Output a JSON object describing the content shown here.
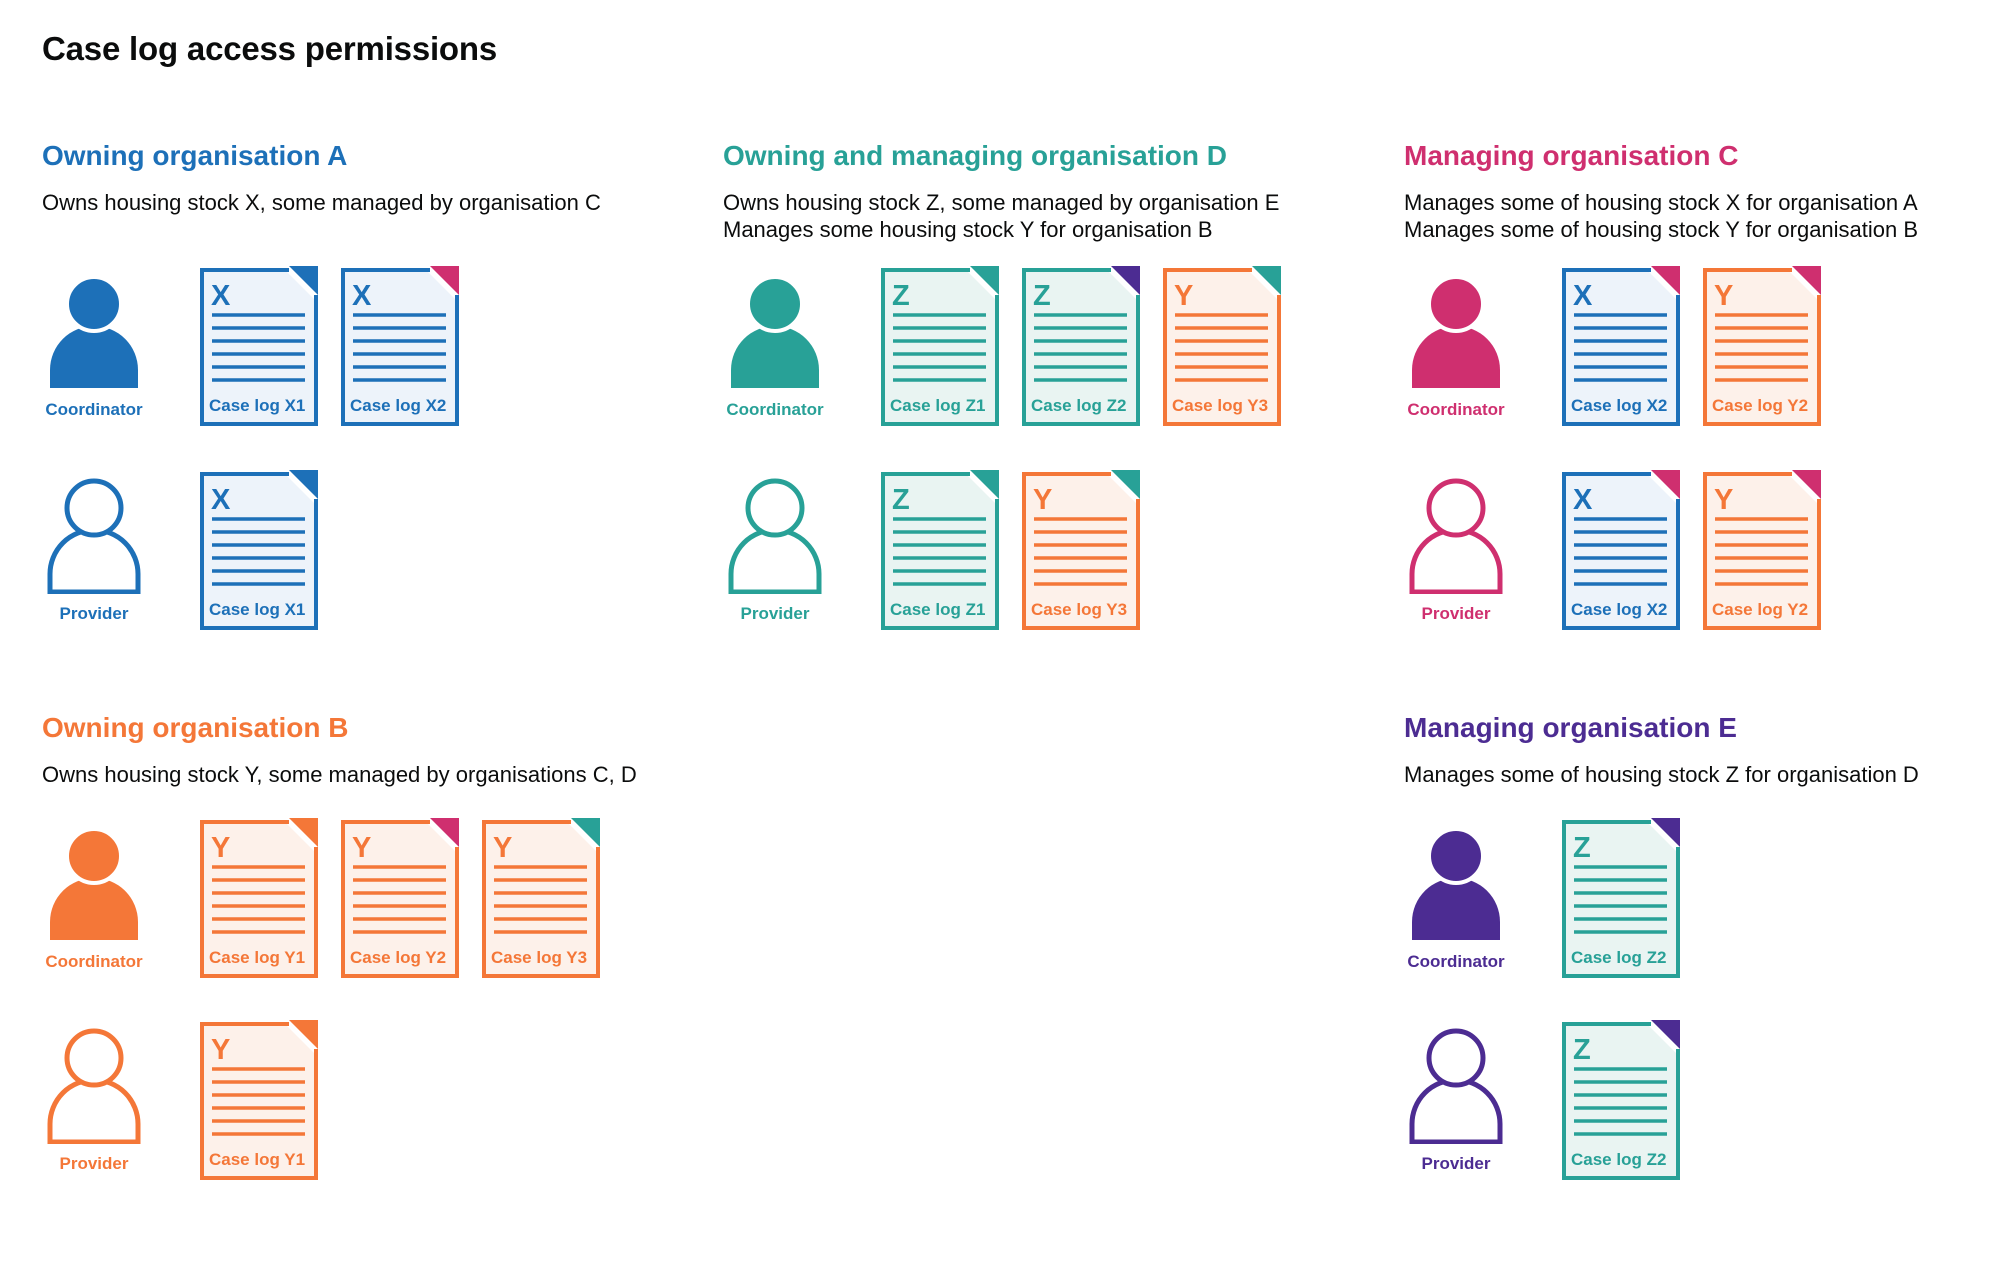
{
  "title": "Case log access permissions",
  "colors": {
    "blue": "#1d70b8",
    "blue_tint": "#edf3fa",
    "teal": "#28a197",
    "teal_tint": "#e9f4f2",
    "pink": "#cf2f6f",
    "orange": "#f47738",
    "orange_tint": "#fdf1ea",
    "purple": "#4c2c92",
    "text": "#0b0c0c"
  },
  "sections": [
    {
      "id": "org-a",
      "color_key": "blue",
      "heading": "Owning organisation A",
      "description_lines": [
        "Owns housing stock X, some managed by organisation C"
      ],
      "rows": [
        {
          "role": "Coordinator",
          "person_style": "filled",
          "docs": [
            {
              "letter": "X",
              "label": "Case log X1",
              "color": "blue",
              "fold": "blue"
            },
            {
              "letter": "X",
              "label": "Case log X2",
              "color": "blue",
              "fold": "pink"
            }
          ]
        },
        {
          "role": "Provider",
          "person_style": "outline",
          "docs": [
            {
              "letter": "X",
              "label": "Case log X1",
              "color": "blue",
              "fold": "blue"
            }
          ]
        }
      ]
    },
    {
      "id": "org-d",
      "color_key": "teal",
      "heading": "Owning and managing organisation D",
      "description_lines": [
        "Owns housing stock Z, some managed by organisation E",
        "Manages some housing stock Y for organisation B"
      ],
      "rows": [
        {
          "role": "Coordinator",
          "person_style": "filled",
          "docs": [
            {
              "letter": "Z",
              "label": "Case log Z1",
              "color": "teal",
              "fold": "teal"
            },
            {
              "letter": "Z",
              "label": "Case log Z2",
              "color": "teal",
              "fold": "purple"
            },
            {
              "letter": "Y",
              "label": "Case log Y3",
              "color": "orange",
              "fold": "teal"
            }
          ]
        },
        {
          "role": "Provider",
          "person_style": "outline",
          "docs": [
            {
              "letter": "Z",
              "label": "Case log Z1",
              "color": "teal",
              "fold": "teal"
            },
            {
              "letter": "Y",
              "label": "Case log Y3",
              "color": "orange",
              "fold": "teal"
            }
          ]
        }
      ]
    },
    {
      "id": "org-c",
      "color_key": "pink",
      "heading": "Managing organisation C",
      "description_lines": [
        "Manages some of housing stock X for organisation A",
        "Manages some of housing stock Y for organisation B"
      ],
      "rows": [
        {
          "role": "Coordinator",
          "person_style": "filled",
          "docs": [
            {
              "letter": "X",
              "label": "Case log X2",
              "color": "blue",
              "fold": "pink"
            },
            {
              "letter": "Y",
              "label": "Case log Y2",
              "color": "orange",
              "fold": "pink"
            }
          ]
        },
        {
          "role": "Provider",
          "person_style": "outline",
          "docs": [
            {
              "letter": "X",
              "label": "Case log X2",
              "color": "blue",
              "fold": "pink"
            },
            {
              "letter": "Y",
              "label": "Case log Y2",
              "color": "orange",
              "fold": "pink"
            }
          ]
        }
      ]
    },
    {
      "id": "org-b",
      "color_key": "orange",
      "heading": "Owning organisation B",
      "description_lines": [
        "Owns housing stock Y, some managed by organisations C, D"
      ],
      "rows": [
        {
          "role": "Coordinator",
          "person_style": "filled",
          "docs": [
            {
              "letter": "Y",
              "label": "Case log Y1",
              "color": "orange",
              "fold": "orange"
            },
            {
              "letter": "Y",
              "label": "Case log Y2",
              "color": "orange",
              "fold": "pink"
            },
            {
              "letter": "Y",
              "label": "Case log Y3",
              "color": "orange",
              "fold": "teal"
            }
          ]
        },
        {
          "role": "Provider",
          "person_style": "outline",
          "docs": [
            {
              "letter": "Y",
              "label": "Case log Y1",
              "color": "orange",
              "fold": "orange"
            }
          ]
        }
      ]
    },
    {
      "id": "org-e",
      "color_key": "purple",
      "heading": "Managing organisation E",
      "description_lines": [
        "Manages some of housing stock Z for organisation D"
      ],
      "rows": [
        {
          "role": "Coordinator",
          "person_style": "filled",
          "docs": [
            {
              "letter": "Z",
              "label": "Case log Z2",
              "color": "teal",
              "fold": "purple"
            }
          ]
        },
        {
          "role": "Provider",
          "person_style": "outline",
          "docs": [
            {
              "letter": "Z",
              "label": "Case log Z2",
              "color": "teal",
              "fold": "purple"
            }
          ]
        }
      ]
    }
  ]
}
